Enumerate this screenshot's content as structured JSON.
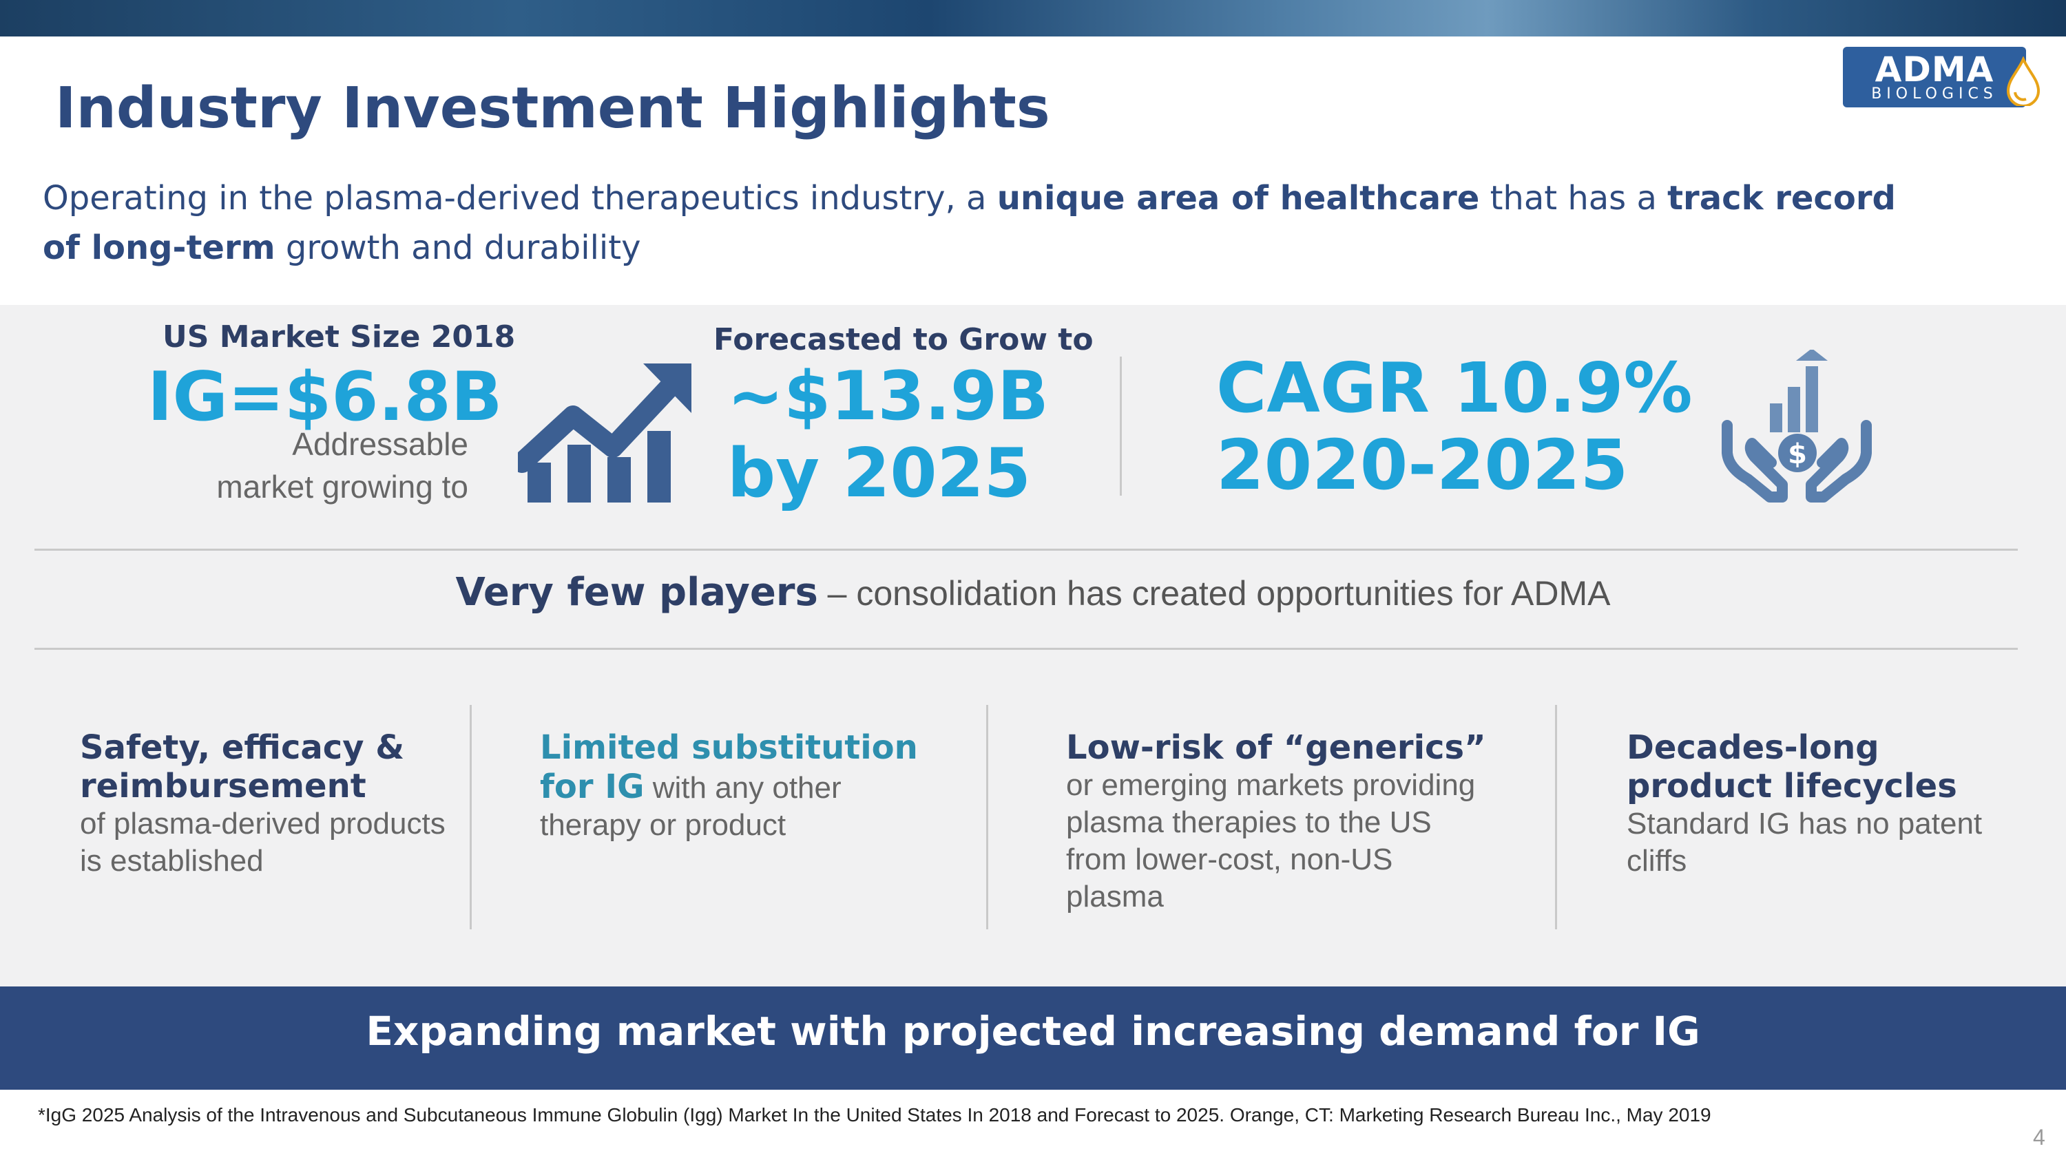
{
  "header": {
    "title": "Industry Investment Highlights",
    "logo_main": "ADMA",
    "logo_sub": "BIOLOGICS"
  },
  "subtitle": {
    "part1": "Operating in the plasma-derived therapeutics industry, a ",
    "bold1": "unique area of healthcare",
    "part2": " that has a ",
    "bold2": "track record of long-term",
    "part3": " growth and durability"
  },
  "stats": {
    "market_label": "US Market Size 2018",
    "market_value": "IG=$6.8B",
    "addressable_line1": "Addressable",
    "addressable_line2": "market growing to",
    "forecast_label": "Forecasted to Grow to",
    "forecast_value_line1": "~$13.9B",
    "forecast_value_line2": "by 2025",
    "cagr_line1": "CAGR 10.9%",
    "cagr_line2": "2020-2025"
  },
  "players": {
    "bold": "Very few players",
    "rest": " – consolidation has created opportunities for ADMA"
  },
  "columns": [
    {
      "head": "Safety, efficacy & reimbursement",
      "body": "of plasma-derived products is established"
    },
    {
      "head": "Limited substitution for IG",
      "body": " with any other therapy or product"
    },
    {
      "head": "Low-risk of “generics”",
      "body": "or emerging markets providing plasma therapies to the US from lower-cost, non-US plasma"
    },
    {
      "head": "Decades-long product lifecycles",
      "body": "Standard IG has no patent cliffs"
    }
  ],
  "bottom_banner": "Expanding market with projected increasing demand for IG",
  "footnote": "*IgG 2025 Analysis of the Intravenous and Subcutaneous Immune Globulin (Igg) Market In the United States In 2018 and Forecast to 2025. Orange, CT: Marketing Research Bureau Inc., May 2019",
  "page_number": "4",
  "icons": {
    "growth": "bar-chart-arrow-icon",
    "investment": "hands-dollar-growth-icon",
    "logo_drop": "drop-icon"
  },
  "colors": {
    "navy": "#2e4a7e",
    "cyan": "#1fa3d9",
    "teal": "#2e8fae",
    "icon_blue": "#3c5f92"
  }
}
